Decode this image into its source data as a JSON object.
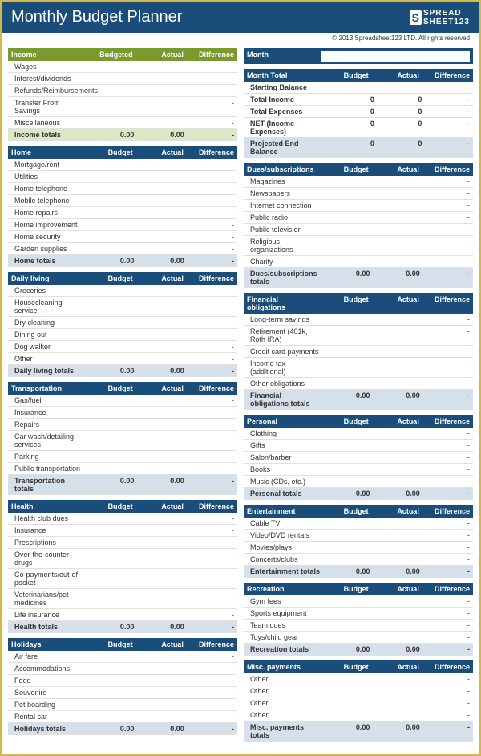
{
  "title": "Monthly Budget Planner",
  "logo_s": "S",
  "logo_text1": "SPREAD",
  "logo_text2": "SHEET123",
  "copyright": "© 2013 Spreadsheet123 LTD. All rights reserved",
  "cols": {
    "budget": "Budget",
    "budgeted": "Budgeted",
    "actual": "Actual",
    "difference": "Difference"
  },
  "month_label": "Month",
  "month_value": "",
  "left": [
    {
      "name": "Income",
      "class": "green",
      "totalclass": "green",
      "headcol1": "Budgeted",
      "rows": [
        {
          "l": "Wages",
          "b": "",
          "a": "",
          "d": "-"
        },
        {
          "l": "Interest/dividends",
          "b": "",
          "a": "",
          "d": "-"
        },
        {
          "l": "Refunds/Reimbursements",
          "b": "",
          "a": "",
          "d": "-"
        },
        {
          "l": "Transfer From Savings",
          "b": "",
          "a": "",
          "d": "-"
        },
        {
          "l": "Miscellaneous",
          "b": "",
          "a": "",
          "d": "-"
        }
      ],
      "total": {
        "l": "Income totals",
        "b": "0.00",
        "a": "0.00",
        "d": "-"
      }
    },
    {
      "name": "Home",
      "class": "blue",
      "totalclass": "",
      "headcol1": "Budget",
      "rows": [
        {
          "l": "Mortgage/rent",
          "b": "",
          "a": "",
          "d": "-"
        },
        {
          "l": "Utilities",
          "b": "",
          "a": "",
          "d": "-"
        },
        {
          "l": "Home telephone",
          "b": "",
          "a": "",
          "d": "-"
        },
        {
          "l": "Mobile telephone",
          "b": "",
          "a": "",
          "d": "-"
        },
        {
          "l": "Home repairs",
          "b": "",
          "a": "",
          "d": "-"
        },
        {
          "l": "Home improvement",
          "b": "",
          "a": "",
          "d": "-"
        },
        {
          "l": "Home security",
          "b": "",
          "a": "",
          "d": "-"
        },
        {
          "l": "Garden supplies",
          "b": "",
          "a": "",
          "d": "-"
        }
      ],
      "total": {
        "l": "Home totals",
        "b": "0.00",
        "a": "0.00",
        "d": "-"
      }
    },
    {
      "name": "Daily living",
      "class": "blue",
      "totalclass": "",
      "headcol1": "Budget",
      "rows": [
        {
          "l": "Groceries",
          "b": "",
          "a": "",
          "d": "-"
        },
        {
          "l": "Housecleaning service",
          "b": "",
          "a": "",
          "d": "-"
        },
        {
          "l": "Dry cleaning",
          "b": "",
          "a": "",
          "d": "-"
        },
        {
          "l": "Dining out",
          "b": "",
          "a": "",
          "d": "-"
        },
        {
          "l": "Dog walker",
          "b": "",
          "a": "",
          "d": "-"
        },
        {
          "l": "Other",
          "b": "",
          "a": "",
          "d": "-"
        }
      ],
      "total": {
        "l": "Daily living totals",
        "b": "0.00",
        "a": "0.00",
        "d": "-"
      }
    },
    {
      "name": "Transportation",
      "class": "blue",
      "totalclass": "",
      "headcol1": "Budget",
      "rows": [
        {
          "l": "Gas/fuel",
          "b": "",
          "a": "",
          "d": "-"
        },
        {
          "l": "Insurance",
          "b": "",
          "a": "",
          "d": "-"
        },
        {
          "l": "Repairs",
          "b": "",
          "a": "",
          "d": "-"
        },
        {
          "l": "Car wash/detailing services",
          "b": "",
          "a": "",
          "d": "-"
        },
        {
          "l": "Parking",
          "b": "",
          "a": "",
          "d": "-"
        },
        {
          "l": "Public transportation",
          "b": "",
          "a": "",
          "d": "-"
        }
      ],
      "total": {
        "l": "Transportation totals",
        "b": "0.00",
        "a": "0.00",
        "d": "-"
      }
    },
    {
      "name": "Health",
      "class": "blue",
      "totalclass": "",
      "headcol1": "Budget",
      "rows": [
        {
          "l": "Health club dues",
          "b": "",
          "a": "",
          "d": "-"
        },
        {
          "l": "Insurance",
          "b": "",
          "a": "",
          "d": "-"
        },
        {
          "l": "Prescriptions",
          "b": "",
          "a": "",
          "d": "-"
        },
        {
          "l": "Over-the-counter drugs",
          "b": "",
          "a": "",
          "d": "-"
        },
        {
          "l": "Co-payments/out-of-pocket",
          "b": "",
          "a": "",
          "d": "-"
        },
        {
          "l": "Veterinarians/pet medicines",
          "b": "",
          "a": "",
          "d": "-"
        },
        {
          "l": "Life insurance",
          "b": "",
          "a": "",
          "d": "-"
        }
      ],
      "total": {
        "l": "Health totals",
        "b": "0.00",
        "a": "0.00",
        "d": "-"
      }
    },
    {
      "name": "Holidays",
      "class": "blue",
      "totalclass": "",
      "headcol1": "Budget",
      "rows": [
        {
          "l": "Air fare",
          "b": "",
          "a": "",
          "d": "-"
        },
        {
          "l": "Accommodations",
          "b": "",
          "a": "",
          "d": "-"
        },
        {
          "l": "Food",
          "b": "",
          "a": "",
          "d": "-"
        },
        {
          "l": "Souvenirs",
          "b": "",
          "a": "",
          "d": "-"
        },
        {
          "l": "Pet boarding",
          "b": "",
          "a": "",
          "d": "-"
        },
        {
          "l": "Rental car",
          "b": "",
          "a": "",
          "d": "-"
        }
      ],
      "total": {
        "l": "Holidays totals",
        "b": "0.00",
        "a": "0.00",
        "d": "-"
      }
    }
  ],
  "summary": {
    "head": {
      "l": "Month Total",
      "b": "Budget",
      "a": "Actual",
      "d": "Difference"
    },
    "rows": [
      {
        "l": "Starting Balance",
        "b": "",
        "a": "",
        "d": "",
        "cls": "bold"
      },
      {
        "l": "Total Income",
        "b": "0",
        "a": "0",
        "d": "-",
        "cls": "bold"
      },
      {
        "l": "Total Expenses",
        "b": "0",
        "a": "0",
        "d": "-",
        "cls": "bold"
      },
      {
        "l": "NET (Income - Expenses)",
        "b": "0",
        "a": "0",
        "d": "-",
        "cls": "net"
      },
      {
        "l": "Projected End Balance",
        "b": "0",
        "a": "0",
        "d": "-",
        "cls": "proj"
      }
    ]
  },
  "right": [
    {
      "name": "Dues/subscriptions",
      "class": "blue",
      "headcol1": "Budget",
      "rows": [
        {
          "l": "Magazines",
          "b": "",
          "a": "",
          "d": "-"
        },
        {
          "l": "Newspapers",
          "b": "",
          "a": "",
          "d": "-"
        },
        {
          "l": "Internet connection",
          "b": "",
          "a": "",
          "d": "-"
        },
        {
          "l": "Public radio",
          "b": "",
          "a": "",
          "d": "-"
        },
        {
          "l": "Public television",
          "b": "",
          "a": "",
          "d": "-"
        },
        {
          "l": "Religious organizations",
          "b": "",
          "a": "",
          "d": "-"
        },
        {
          "l": "Charity",
          "b": "",
          "a": "",
          "d": "-"
        }
      ],
      "total": {
        "l": "Dues/subscriptions totals",
        "b": "0.00",
        "a": "0.00",
        "d": "-"
      }
    },
    {
      "name": "Financial obligations",
      "class": "blue",
      "headcol1": "Budget",
      "rows": [
        {
          "l": "Long-term savings",
          "b": "",
          "a": "",
          "d": "-"
        },
        {
          "l": "Retirement (401k, Roth IRA)",
          "b": "",
          "a": "",
          "d": "-"
        },
        {
          "l": "Credit card payments",
          "b": "",
          "a": "",
          "d": "-"
        },
        {
          "l": "Income tax (additional)",
          "b": "",
          "a": "",
          "d": "-"
        },
        {
          "l": "Other obligations",
          "b": "",
          "a": "",
          "d": "-"
        }
      ],
      "total": {
        "l": "Financial obligations totals",
        "b": "0.00",
        "a": "0.00",
        "d": "-"
      }
    },
    {
      "name": "Personal",
      "class": "blue",
      "headcol1": "Budget",
      "rows": [
        {
          "l": "Clothing",
          "b": "",
          "a": "",
          "d": "-"
        },
        {
          "l": "Gifts",
          "b": "",
          "a": "",
          "d": "-"
        },
        {
          "l": "Salon/barber",
          "b": "",
          "a": "",
          "d": "-"
        },
        {
          "l": "Books",
          "b": "",
          "a": "",
          "d": "-"
        },
        {
          "l": "Music (CDs, etc.)",
          "b": "",
          "a": "",
          "d": "-"
        }
      ],
      "total": {
        "l": "Personal totals",
        "b": "0.00",
        "a": "0.00",
        "d": "-"
      }
    },
    {
      "name": "Entertainment",
      "class": "blue",
      "headcol1": "Budget",
      "rows": [
        {
          "l": "Cable TV",
          "b": "",
          "a": "",
          "d": "-"
        },
        {
          "l": "Video/DVD rentals",
          "b": "",
          "a": "",
          "d": "-"
        },
        {
          "l": "Movies/plays",
          "b": "",
          "a": "",
          "d": "-"
        },
        {
          "l": "Concerts/clubs",
          "b": "",
          "a": "",
          "d": "-"
        }
      ],
      "total": {
        "l": "Entertainment totals",
        "b": "0.00",
        "a": "0.00",
        "d": "-"
      }
    },
    {
      "name": "Recreation",
      "class": "blue",
      "headcol1": "Budget",
      "rows": [
        {
          "l": "Gym fees",
          "b": "",
          "a": "",
          "d": "-"
        },
        {
          "l": "Sports equipment",
          "b": "",
          "a": "",
          "d": "-"
        },
        {
          "l": "Team dues",
          "b": "",
          "a": "",
          "d": "-"
        },
        {
          "l": "Toys/child gear",
          "b": "",
          "a": "",
          "d": "-"
        }
      ],
      "total": {
        "l": "Recreation totals",
        "b": "0.00",
        "a": "0.00",
        "d": "-"
      }
    },
    {
      "name": "Misc. payments",
      "class": "blue",
      "headcol1": "Budget",
      "rows": [
        {
          "l": "Other",
          "b": "",
          "a": "",
          "d": "-"
        },
        {
          "l": "Other",
          "b": "",
          "a": "",
          "d": "-"
        },
        {
          "l": "Other",
          "b": "",
          "a": "",
          "d": "-"
        },
        {
          "l": "Other",
          "b": "",
          "a": "",
          "d": "-"
        }
      ],
      "total": {
        "l": "Misc. payments totals",
        "b": "0.00",
        "a": "0.00",
        "d": "-"
      }
    }
  ]
}
